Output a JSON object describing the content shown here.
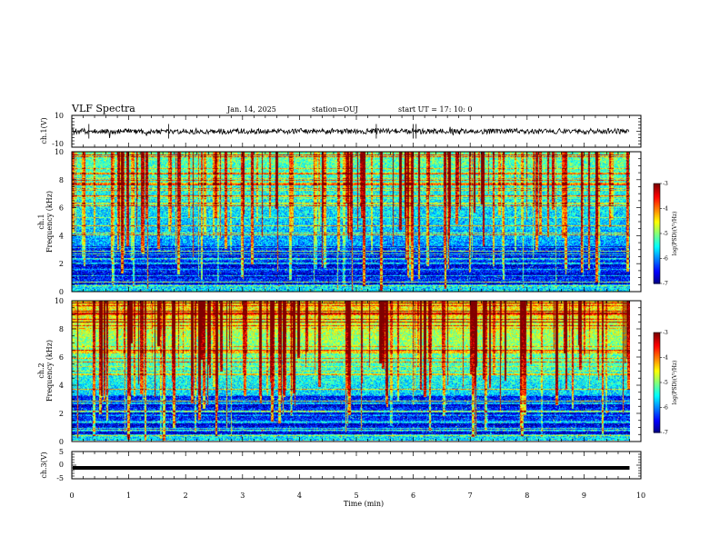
{
  "header": {
    "title": "VLF Spectra",
    "date": "Jan. 14, 2025",
    "station": "station=OUJ",
    "start": "start  UT =   17: 10: 0"
  },
  "chart_data": [
    {
      "type": "line",
      "name": "ch1-waveform",
      "ylabel": "ch.1(V)",
      "ylim": [
        -10,
        10
      ],
      "yticks": [
        "10",
        "-10"
      ],
      "xlim": [
        0,
        10
      ],
      "x_data_end": 9.8,
      "description_level": 0,
      "amplitude": 0.9
    },
    {
      "type": "heatmap",
      "name": "ch1-spectrogram",
      "ylabel": "ch.1\nFrequency (kHz)",
      "ylim": [
        0,
        10
      ],
      "yticks": [
        "0",
        "2",
        "4",
        "6",
        "8",
        "10"
      ],
      "xlim": [
        0,
        10
      ],
      "x_data_end": 9.8,
      "colorbar": {
        "label": "log(PSD)(V²/Hz)",
        "range": [
          -7,
          -3
        ],
        "ticks": [
          "-3",
          "-4",
          "-5",
          "-6",
          "-7"
        ]
      }
    },
    {
      "type": "heatmap",
      "name": "ch2-spectrogram",
      "ylabel": "ch.2\nFrequency (kHz)",
      "ylim": [
        0,
        10
      ],
      "yticks": [
        "0",
        "2",
        "4",
        "6",
        "8",
        "10"
      ],
      "xlim": [
        0,
        10
      ],
      "x_data_end": 9.8,
      "colorbar": {
        "label": "log(PSD)(V²/Hz)",
        "range": [
          -7,
          -3
        ],
        "ticks": [
          "-3",
          "-4",
          "-5",
          "-6",
          "-7"
        ]
      }
    },
    {
      "type": "line",
      "name": "ch3-signal",
      "ylabel": "ch.3(V)",
      "ylim": [
        -5,
        5
      ],
      "yticks": [
        "5",
        "0",
        "-5"
      ],
      "xlim": [
        0,
        10
      ],
      "x_data_end": 9.8,
      "level": -1
    }
  ],
  "xaxis": {
    "label": "Time (min)",
    "ticks": [
      "0",
      "1",
      "2",
      "3",
      "4",
      "5",
      "6",
      "7",
      "8",
      "9",
      "10"
    ]
  },
  "colors": {
    "axis": "#000000",
    "background": "#ffffff"
  }
}
